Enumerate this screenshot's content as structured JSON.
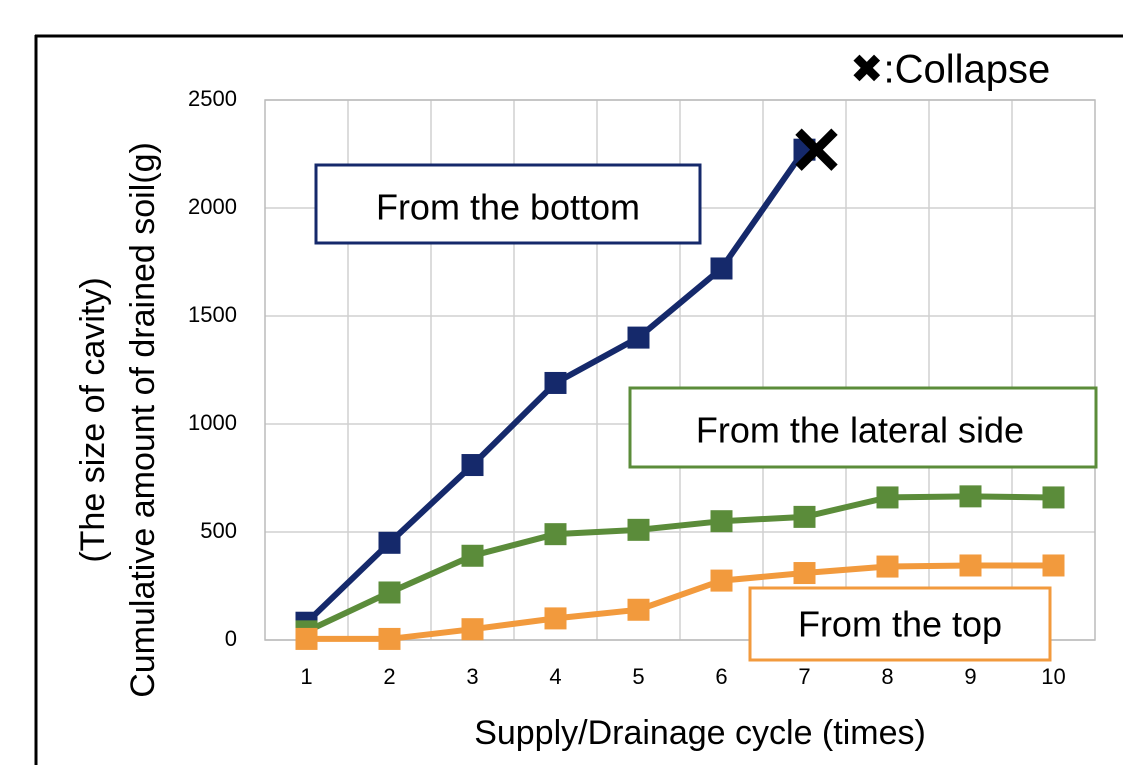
{
  "chart_data": {
    "type": "line",
    "xlabel": "Supply/Drainage cycle (times)",
    "ylabel": [
      "(The size of cavity)",
      "Cumulative amount of drained soil(g)"
    ],
    "categories": [
      "1",
      "2",
      "3",
      "4",
      "5",
      "6",
      "7",
      "8",
      "9",
      "10"
    ],
    "series": [
      {
        "name": "From the bottom",
        "color": "#15296b",
        "values": [
          80,
          450,
          810,
          1190,
          1400,
          1720,
          2270,
          null,
          null,
          null
        ]
      },
      {
        "name": "From the lateral side",
        "color": "#5b8c3a",
        "values": [
          40,
          220,
          390,
          490,
          510,
          550,
          570,
          660,
          665,
          660
        ]
      },
      {
        "name": "From the top",
        "color": "#f29a3d",
        "values": [
          5,
          5,
          50,
          100,
          140,
          275,
          310,
          340,
          345,
          345
        ]
      }
    ],
    "annotation": "✖:Collapse",
    "ylim": [
      0,
      2500
    ],
    "yticks": [
      0,
      500,
      1000,
      1500,
      2000,
      2500
    ],
    "grid": true
  }
}
